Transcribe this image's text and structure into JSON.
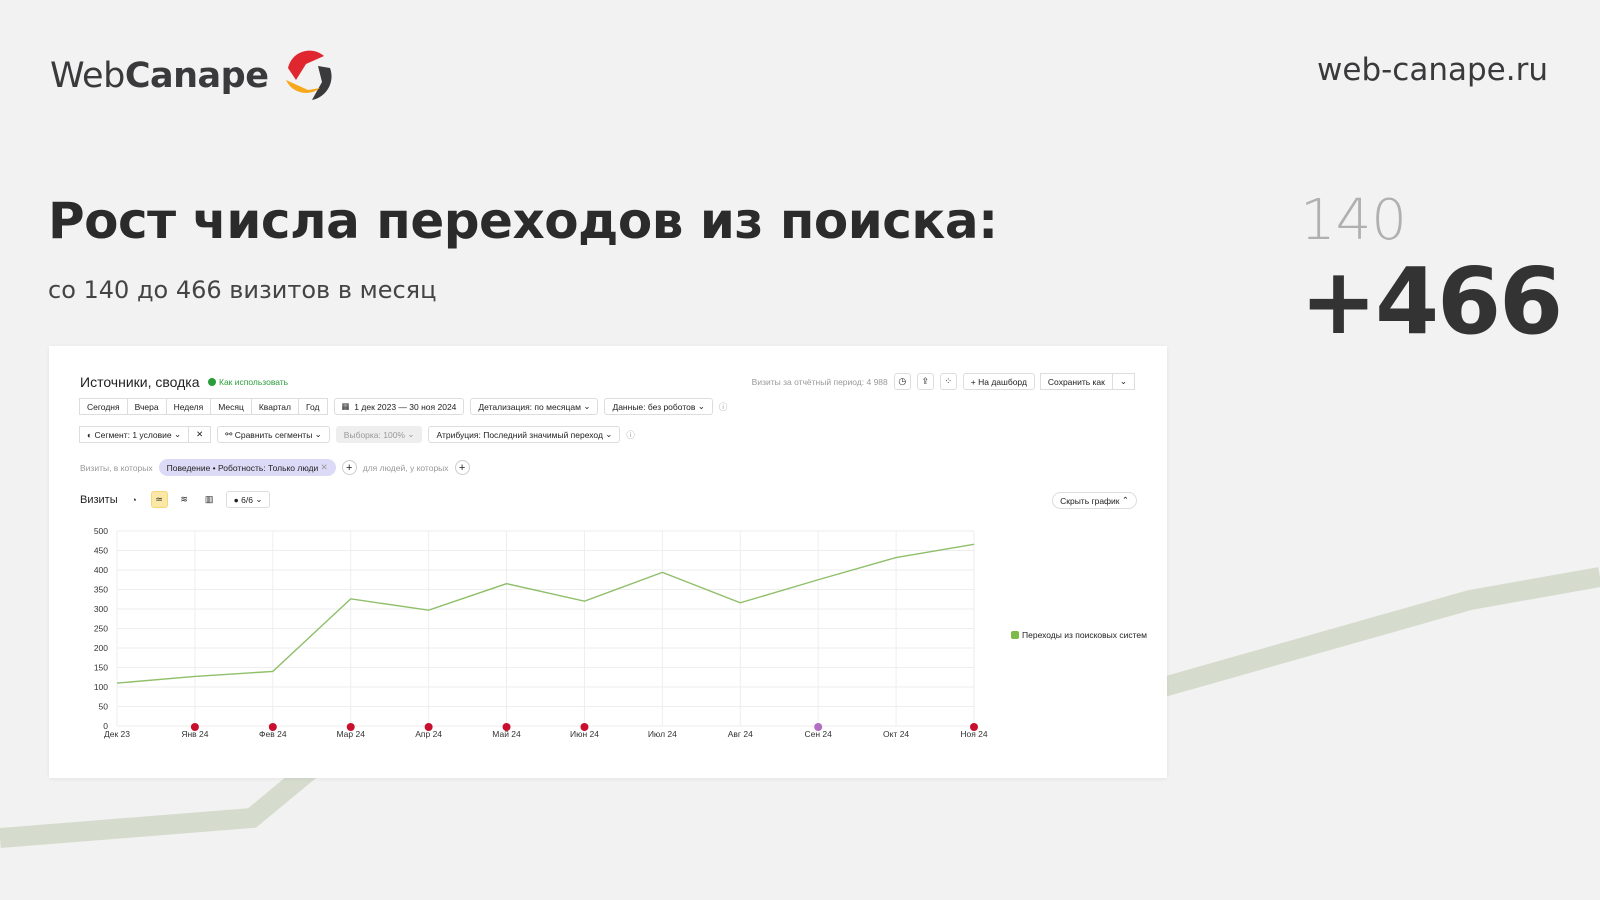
{
  "brand": {
    "logo_text_light": "Web",
    "logo_text_bold": "Canape",
    "site": "web-canape.ru",
    "colors": {
      "red": "#e0262e",
      "yellow": "#f7a81b",
      "dark": "#3a3a3c",
      "band": "#d6dccd"
    }
  },
  "headline": {
    "title": "Рост числа переходов из поиска:",
    "subtitle": "со 140 до 466 визитов в месяц",
    "from": "140",
    "to": "+466"
  },
  "report": {
    "title": "Источники, сводка",
    "how_to": "Как использовать",
    "period_visits": "Визиты за отчётный период: 4 988",
    "to_dashboard": "На дашборд",
    "save_as": "Сохранить как",
    "periods": [
      "Сегодня",
      "Вчера",
      "Неделя",
      "Месяц",
      "Квартал",
      "Год"
    ],
    "date_range": "1 дек 2023 — 30 ноя 2024",
    "detail": "Детализация: по месяцам",
    "data_filter": "Данные: без роботов",
    "segment": "Сегмент: 1 условие",
    "compare": "Сравнить сегменты",
    "sample": "Выборка: 100%",
    "attribution": "Атрибуция: Последний значимый переход",
    "visits_where": "Визиты, в которых",
    "filter_chip": "Поведение • Роботность: Только люди",
    "people_where": "для людей, у которых",
    "metric": "Визиты",
    "series_count": "6/6",
    "hide_chart": "Скрыть график"
  },
  "chart_data": {
    "type": "line",
    "categories": [
      "Дек 23",
      "Янв 24",
      "Фев 24",
      "Мар 24",
      "Апр 24",
      "Май 24",
      "Июн 24",
      "Июл 24",
      "Авг 24",
      "Сен 24",
      "Окт 24",
      "Ноя 24"
    ],
    "series": [
      {
        "name": "Переходы из поисковых систем",
        "values": [
          110,
          127,
          140,
          326,
          297,
          365,
          320,
          394,
          316,
          375,
          432,
          466
        ],
        "color": "#8fbf6a"
      }
    ],
    "yticks": [
      0,
      50,
      100,
      150,
      200,
      250,
      300,
      350,
      400,
      450,
      500
    ],
    "ylim": [
      0,
      500
    ],
    "grid": true,
    "legend": "right",
    "annotation_markers": [
      1,
      2,
      3,
      4,
      5,
      6,
      9,
      11
    ]
  }
}
